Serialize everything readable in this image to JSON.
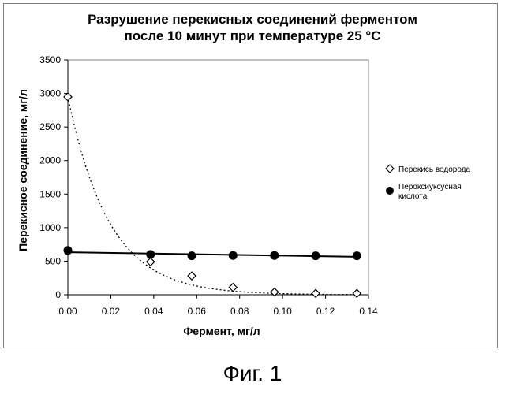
{
  "figure_caption": "Фиг. 1",
  "chart_data": {
    "type": "scatter",
    "title_line1": "Разрушение перекисных соединений ферментом",
    "title_line2": "после 10 минут при температуре 25 °C",
    "xlabel": "Фермент, мг/л",
    "ylabel": "Перекисное соединение, мг/л",
    "xlim": [
      0,
      0.14
    ],
    "ylim": [
      0,
      3500
    ],
    "xticks": [
      "0.00",
      "0.02",
      "0.04",
      "0.06",
      "0.08",
      "0.10",
      "0.12",
      "0.14"
    ],
    "yticks": [
      "0",
      "500",
      "1000",
      "1500",
      "2000",
      "2500",
      "3000",
      "3500"
    ],
    "grid": false,
    "legend_position": "right",
    "series": [
      {
        "name": "Перекись водорода",
        "marker": "diamond-open",
        "trendline": "exponential-dotted",
        "x": [
          0.0,
          0.0385,
          0.0577,
          0.0769,
          0.0962,
          0.1154,
          0.1346
        ],
        "y": [
          2950,
          490,
          280,
          110,
          40,
          20,
          20
        ]
      },
      {
        "name": "Пероксиуксусная кислота",
        "legend_line1": "Пероксиуксусная",
        "legend_line2": "кислота",
        "marker": "circle-filled",
        "trendline": "linear-solid",
        "x": [
          0.0,
          0.0385,
          0.0577,
          0.0769,
          0.0962,
          0.1154,
          0.1346
        ],
        "y": [
          660,
          600,
          580,
          585,
          585,
          580,
          580
        ]
      }
    ]
  }
}
